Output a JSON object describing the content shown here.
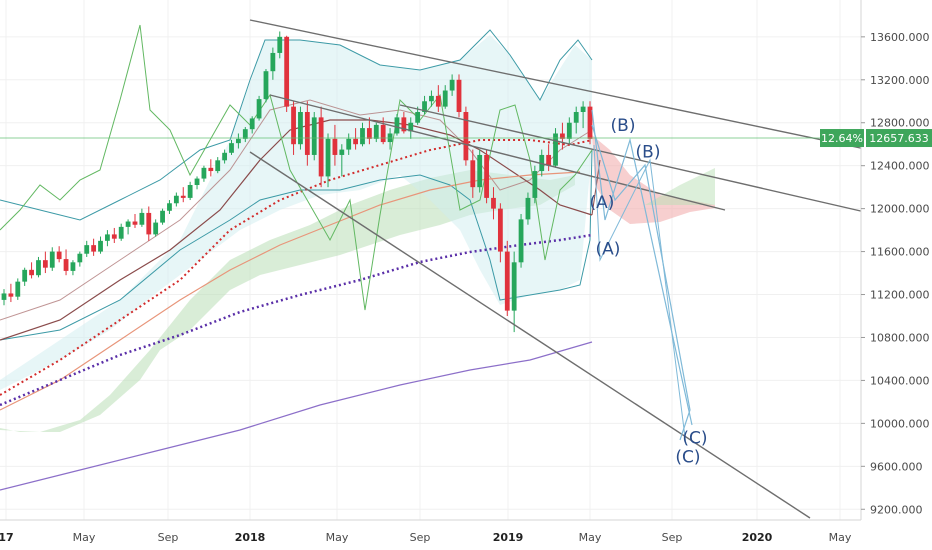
{
  "chart_data": {
    "type": "candlestick",
    "y_axis": {
      "range": [
        9100,
        13850
      ],
      "ticks": [
        {
          "value": 13600,
          "label": "13600.000"
        },
        {
          "value": 13200,
          "label": "13200.000"
        },
        {
          "value": 12800,
          "label": "12800.000"
        },
        {
          "value": 12400,
          "label": "12400.000"
        },
        {
          "value": 12000,
          "label": "12000.000"
        },
        {
          "value": 11600,
          "label": "11600.000"
        },
        {
          "value": 11200,
          "label": "11200.000"
        },
        {
          "value": 10800,
          "label": "10800.000"
        },
        {
          "value": 10400,
          "label": "10400.000"
        },
        {
          "value": 10000,
          "label": "10000.000"
        },
        {
          "value": 9600,
          "label": "9600.000"
        },
        {
          "value": 9200,
          "label": "9200.000"
        }
      ]
    },
    "x_axis": {
      "ticks": [
        {
          "label": "17",
          "bold": true
        },
        {
          "label": "May",
          "bold": false
        },
        {
          "label": "Sep",
          "bold": false
        },
        {
          "label": "2018",
          "bold": true
        },
        {
          "label": "May",
          "bold": false
        },
        {
          "label": "Sep",
          "bold": false
        },
        {
          "label": "2019",
          "bold": true
        },
        {
          "label": "May",
          "bold": false
        },
        {
          "label": "Sep",
          "bold": false
        },
        {
          "label": "2020",
          "bold": true
        },
        {
          "label": "May",
          "bold": false
        }
      ]
    },
    "price_badge": {
      "percent": "12.64%",
      "price": "12657.633",
      "value": 12657.633
    },
    "wave_labels": [
      {
        "text": "(B)",
        "price": 12780
      },
      {
        "text": "(B)",
        "price": 12530
      },
      {
        "text": "(A)",
        "price": 12060
      },
      {
        "text": "(A)",
        "price": 11630
      },
      {
        "text": "(C)",
        "price": 9870
      },
      {
        "text": "(C)",
        "price": 9690
      }
    ],
    "candles": [
      [
        11150,
        11250,
        11100,
        11210
      ],
      [
        11210,
        11300,
        11130,
        11180
      ],
      [
        11180,
        11350,
        11150,
        11320
      ],
      [
        11320,
        11450,
        11280,
        11430
      ],
      [
        11430,
        11500,
        11350,
        11380
      ],
      [
        11380,
        11550,
        11360,
        11520
      ],
      [
        11520,
        11600,
        11400,
        11450
      ],
      [
        11450,
        11640,
        11420,
        11600
      ],
      [
        11600,
        11650,
        11500,
        11530
      ],
      [
        11530,
        11620,
        11380,
        11420
      ],
      [
        11420,
        11520,
        11380,
        11500
      ],
      [
        11500,
        11600,
        11460,
        11580
      ],
      [
        11580,
        11700,
        11550,
        11660
      ],
      [
        11660,
        11720,
        11560,
        11600
      ],
      [
        11600,
        11740,
        11580,
        11700
      ],
      [
        11700,
        11800,
        11650,
        11760
      ],
      [
        11760,
        11820,
        11680,
        11720
      ],
      [
        11720,
        11860,
        11700,
        11830
      ],
      [
        11830,
        11900,
        11760,
        11880
      ],
      [
        11880,
        11950,
        11820,
        11850
      ],
      [
        11850,
        12000,
        11830,
        11960
      ],
      [
        11960,
        12020,
        11700,
        11760
      ],
      [
        11760,
        11900,
        11740,
        11870
      ],
      [
        11870,
        12000,
        11850,
        11980
      ],
      [
        11980,
        12080,
        11950,
        12050
      ],
      [
        12050,
        12150,
        12020,
        12120
      ],
      [
        12120,
        12200,
        12060,
        12100
      ],
      [
        12100,
        12250,
        12080,
        12220
      ],
      [
        12220,
        12300,
        12180,
        12280
      ],
      [
        12280,
        12400,
        12250,
        12380
      ],
      [
        12380,
        12460,
        12300,
        12350
      ],
      [
        12350,
        12480,
        12330,
        12450
      ],
      [
        12450,
        12550,
        12420,
        12520
      ],
      [
        12520,
        12640,
        12500,
        12610
      ],
      [
        12610,
        12700,
        12560,
        12650
      ],
      [
        12650,
        12760,
        12620,
        12740
      ],
      [
        12740,
        12860,
        12700,
        12840
      ],
      [
        12840,
        13050,
        12820,
        13020
      ],
      [
        13020,
        13300,
        12990,
        13280
      ],
      [
        13280,
        13500,
        13200,
        13450
      ],
      [
        13450,
        13650,
        13400,
        13600
      ],
      [
        13600,
        13610,
        12900,
        12950
      ],
      [
        12950,
        13000,
        12500,
        12600
      ],
      [
        12600,
        12950,
        12550,
        12900
      ],
      [
        12900,
        13000,
        12400,
        12500
      ],
      [
        12500,
        12900,
        12450,
        12850
      ],
      [
        12850,
        12950,
        12200,
        12300
      ],
      [
        12300,
        12700,
        12200,
        12650
      ],
      [
        12650,
        12780,
        12400,
        12500
      ],
      [
        12500,
        12600,
        12300,
        12550
      ],
      [
        12550,
        12700,
        12500,
        12650
      ],
      [
        12650,
        12750,
        12550,
        12600
      ],
      [
        12600,
        12800,
        12580,
        12750
      ],
      [
        12750,
        12850,
        12600,
        12650
      ],
      [
        12650,
        12800,
        12620,
        12780
      ],
      [
        12780,
        12850,
        12600,
        12620
      ],
      [
        12620,
        12750,
        12550,
        12700
      ],
      [
        12700,
        12880,
        12680,
        12850
      ],
      [
        12850,
        12900,
        12700,
        12720
      ],
      [
        12720,
        12850,
        12650,
        12800
      ],
      [
        12800,
        12950,
        12780,
        12900
      ],
      [
        12900,
        13050,
        12880,
        13000
      ],
      [
        13000,
        13100,
        12950,
        13050
      ],
      [
        13050,
        13150,
        12900,
        12950
      ],
      [
        12950,
        13150,
        12930,
        13100
      ],
      [
        13100,
        13250,
        13050,
        13200
      ],
      [
        13200,
        13250,
        12850,
        12900
      ],
      [
        12900,
        12950,
        12400,
        12450
      ],
      [
        12450,
        12550,
        12100,
        12200
      ],
      [
        12200,
        12550,
        12150,
        12500
      ],
      [
        12500,
        12550,
        12050,
        12100
      ],
      [
        12100,
        12200,
        11900,
        12000
      ],
      [
        12000,
        12050,
        11500,
        11600
      ],
      [
        11600,
        11700,
        11000,
        11050
      ],
      [
        11050,
        11600,
        10850,
        11500
      ],
      [
        11500,
        11950,
        11450,
        11900
      ],
      [
        11900,
        12150,
        11850,
        12100
      ],
      [
        12100,
        12400,
        12050,
        12350
      ],
      [
        12350,
        12550,
        12300,
        12500
      ],
      [
        12500,
        12600,
        12350,
        12400
      ],
      [
        12400,
        12750,
        12380,
        12700
      ],
      [
        12700,
        12800,
        12550,
        12650
      ],
      [
        12650,
        12850,
        12600,
        12800
      ],
      [
        12800,
        12950,
        12700,
        12900
      ],
      [
        12900,
        13000,
        12750,
        12950
      ],
      [
        12950,
        13000,
        12600,
        12650
      ]
    ]
  }
}
